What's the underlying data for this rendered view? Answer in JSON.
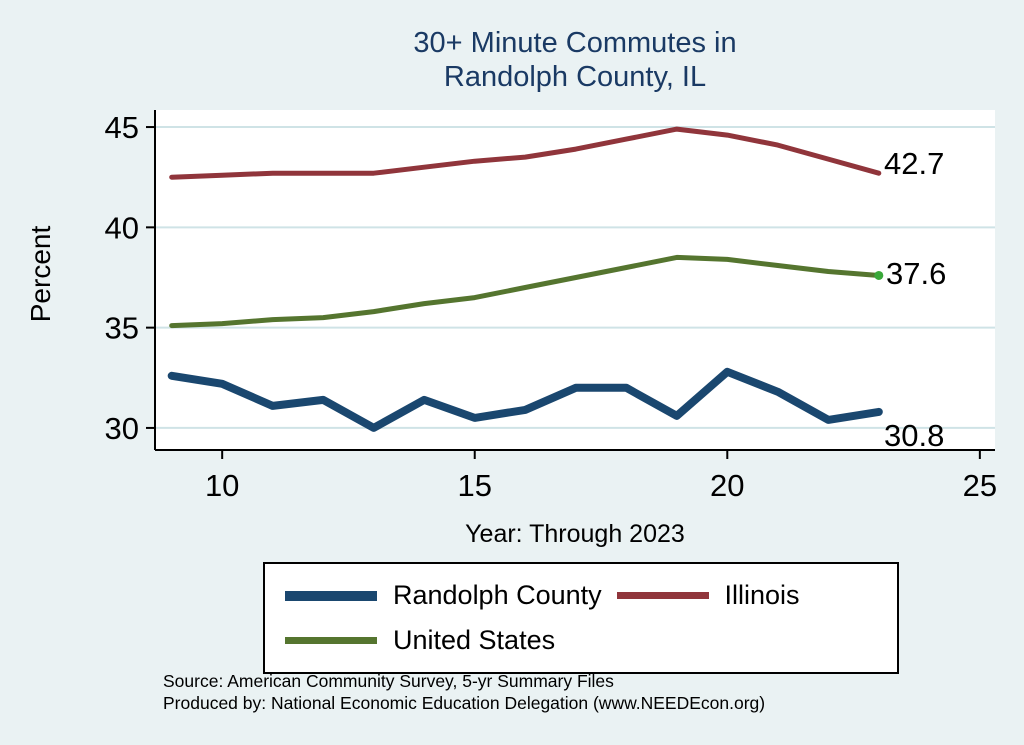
{
  "title": {
    "line1": "30+ Minute Commutes in",
    "line2": "Randolph County, IL"
  },
  "ylabel": "Percent",
  "xlabel": "Year: Through 2023",
  "end_labels": {
    "illinois": "42.7",
    "united_states": "37.6",
    "randolph_county": "30.8"
  },
  "legend": [
    {
      "label": "Randolph County",
      "color": "#1a476f",
      "swatch_height": 10
    },
    {
      "label": "Illinois",
      "color": "#90353b",
      "swatch_height": 7
    },
    {
      "label": "United States",
      "color": "#55752f",
      "swatch_height": 7
    }
  ],
  "source": {
    "line1": "Source: American Community Survey, 5-yr Summary Files",
    "line2": "Produced by: National Economic Education Delegation (www.NEEDEcon.org)"
  },
  "colors": {
    "background": "#eaf2f3",
    "plot_background": "#ffffff",
    "gridline": "#cfe3e6",
    "axis": "#000000",
    "title_text": "#1a3a64",
    "end_marker": "#3aa83a"
  },
  "chart_data": {
    "type": "line",
    "title": "30+ Minute Commutes in Randolph County, IL",
    "xlabel": "Year: Through 2023",
    "ylabel": "Percent",
    "x": [
      9,
      10,
      11,
      12,
      13,
      14,
      15,
      16,
      17,
      18,
      19,
      20,
      21,
      22,
      23
    ],
    "series": [
      {
        "name": "Randolph County",
        "color": "#1a476f",
        "width": 8,
        "values": [
          32.6,
          32.2,
          31.1,
          31.4,
          30.0,
          31.4,
          30.5,
          30.9,
          32.0,
          32.0,
          30.6,
          32.8,
          31.8,
          30.4,
          30.8
        ]
      },
      {
        "name": "Illinois",
        "color": "#90353b",
        "width": 5,
        "values": [
          42.5,
          42.6,
          42.7,
          42.7,
          42.7,
          43.0,
          43.3,
          43.5,
          43.9,
          44.4,
          44.9,
          44.6,
          44.1,
          43.4,
          42.7
        ]
      },
      {
        "name": "United States",
        "color": "#55752f",
        "width": 5,
        "end_marker": true,
        "values": [
          35.1,
          35.2,
          35.4,
          35.5,
          35.8,
          36.2,
          36.5,
          37.0,
          37.5,
          38.0,
          38.5,
          38.4,
          38.1,
          37.8,
          37.6
        ]
      }
    ],
    "xticks": [
      10,
      15,
      20,
      25
    ],
    "yticks": [
      30,
      35,
      40,
      45
    ],
    "xlim": [
      8.67,
      25.3
    ],
    "ylim": [
      28.9,
      45.85
    ],
    "grid": true,
    "legend_position": "bottom"
  }
}
